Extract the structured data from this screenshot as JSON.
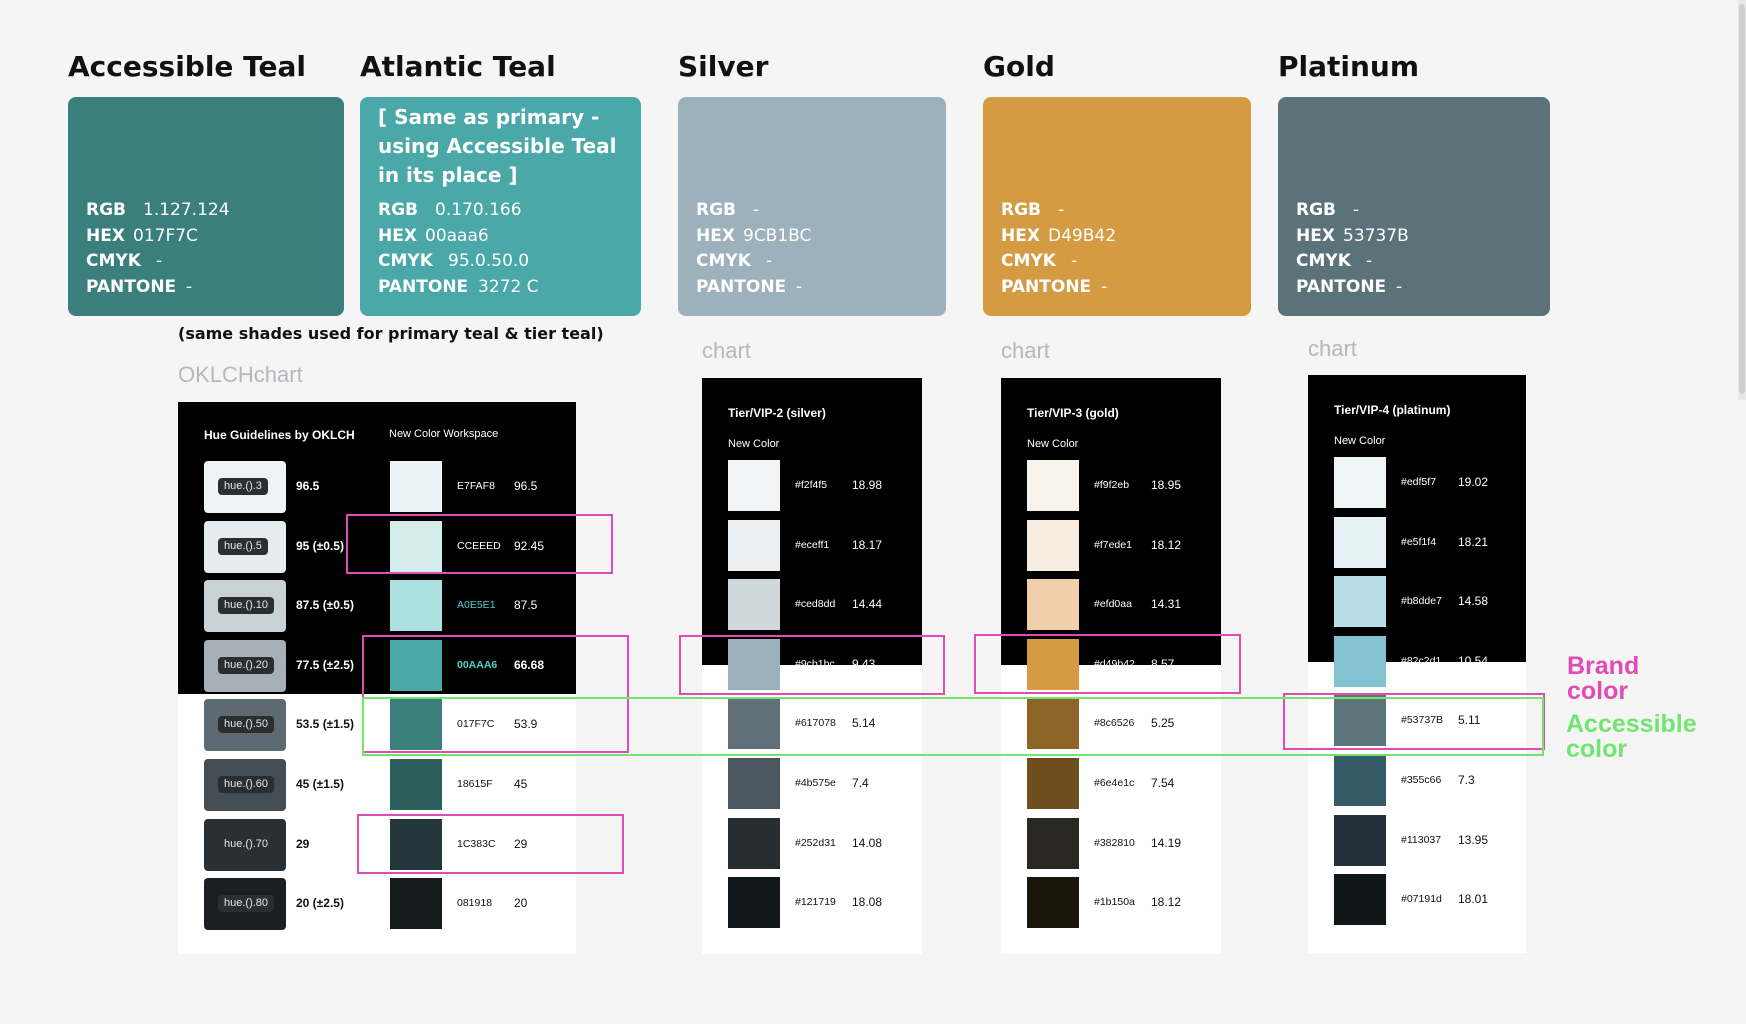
{
  "cards": [
    {
      "id": "accessible",
      "title": "Accessible Teal",
      "color": "#3a7f7c",
      "text_color": "#ffffff",
      "note": "",
      "rgb": "1.127.124",
      "hex": "017F7C",
      "cmyk": "-",
      "pantone": "-"
    },
    {
      "id": "atlantic",
      "title": "Atlantic Teal",
      "color": "#4aa8a8",
      "text_color": "#ffffff",
      "note": "[ Same as primary - using Accessible Teal in its place ]",
      "rgb": "0.170.166",
      "hex": "00aaa6",
      "cmyk": "95.0.50.0",
      "pantone": "3272 C"
    },
    {
      "id": "silver",
      "title": "Silver",
      "color": "#9cb1bc",
      "text_color": "#ffffff",
      "note": "",
      "rgb": "-",
      "hex": "9CB1BC",
      "cmyk": "-",
      "pantone": "-"
    },
    {
      "id": "gold",
      "title": "Gold",
      "color": "#d49b42",
      "text_color": "#ffffff",
      "note": "",
      "rgb": "-",
      "hex": "D49B42",
      "cmyk": "-",
      "pantone": "-"
    },
    {
      "id": "platinum",
      "title": "Platinum",
      "color": "#5c7279",
      "text_color": "#ffffff",
      "note": "",
      "rgb": "-",
      "hex": "53737B",
      "cmyk": "-",
      "pantone": "-"
    }
  ],
  "spec_labels": {
    "rgb": "RGB",
    "hex": "HEX",
    "cmyk": "CMYK",
    "pantone": "PANTONE"
  },
  "shades_caption": "(same shades used for primary teal & tier teal)",
  "oklch": {
    "label": "OKLCHchart",
    "heading": "Hue Guidelines by OKLCH",
    "workspace": "New Color Workspace",
    "rows": [
      {
        "pill": "hue.().3",
        "hue_color": "#eef3f5",
        "range": "96.5",
        "swatch": "#eaf4f6",
        "hex": "E7FAF8",
        "value": "96.5"
      },
      {
        "pill": "hue.().5",
        "hue_color": "#e4ecef",
        "range": "95 (±0.5)",
        "swatch": "#d4ecec",
        "hex": "CCEEED",
        "value": "92.45"
      },
      {
        "pill": "hue.().10",
        "hue_color": "#c8d1d6",
        "range": "87.5 (±0.5)",
        "swatch": "#ade0e1",
        "hex": "A0E5E1",
        "value": "87.5"
      },
      {
        "pill": "hue.().20",
        "hue_color": "#a6b0b6",
        "range": "77.5 (±2.5)",
        "swatch": "#4aa8a8",
        "hex": "00AAA6",
        "value": "66.68"
      },
      {
        "pill": "hue.().50",
        "hue_color": "#5d6a71",
        "range": "53.5 (±1.5)",
        "swatch": "#3a7f7c",
        "hex": "017F7C",
        "value": "53.9"
      },
      {
        "pill": "hue.().60",
        "hue_color": "#434d53",
        "range": "45 (±1.5)",
        "swatch": "#2d605c",
        "hex": "18615F",
        "value": "45"
      },
      {
        "pill": "hue.().70",
        "hue_color": "#283036",
        "range": "29",
        "swatch": "#23373d",
        "hex": "1C383C",
        "value": "29"
      },
      {
        "pill": "hue.().80",
        "hue_color": "#1a1f23",
        "range": "20 (±2.5)",
        "swatch": "#141a1a",
        "hex": "081918",
        "value": "20"
      }
    ]
  },
  "tiers": [
    {
      "id": "silver",
      "label": "chart",
      "heading": "Tier/VIP-2 (silver)",
      "sub": "New Color",
      "rows": [
        {
          "color": "#f2f4f5",
          "hex": "#f2f4f5",
          "value": "18.98"
        },
        {
          "color": "#eceff1",
          "hex": "#eceff1",
          "value": "18.17"
        },
        {
          "color": "#ced8dd",
          "hex": "#ced8dd",
          "value": "14.44"
        },
        {
          "color": "#9cb1bc",
          "hex": "#9cb1bc",
          "value": "9.43"
        },
        {
          "color": "#617078",
          "hex": "#617078",
          "value": "5.14"
        },
        {
          "color": "#4b575e",
          "hex": "#4b575e",
          "value": "7.4"
        },
        {
          "color": "#252d31",
          "hex": "#252d31",
          "value": "14.08"
        },
        {
          "color": "#121719",
          "hex": "#121719",
          "value": "18.08"
        }
      ]
    },
    {
      "id": "gold",
      "label": "chart",
      "heading": "Tier/VIP-3 (gold)",
      "sub": "New Color",
      "rows": [
        {
          "color": "#f9f2eb",
          "hex": "#f9f2eb",
          "value": "18.95"
        },
        {
          "color": "#f7ede1",
          "hex": "#f7ede1",
          "value": "18.12"
        },
        {
          "color": "#efd0aa",
          "hex": "#efd0aa",
          "value": "14.31"
        },
        {
          "color": "#d49b42",
          "hex": "#d49b42",
          "value": "8.57"
        },
        {
          "color": "#8c6526",
          "hex": "#8c6526",
          "value": "5.25"
        },
        {
          "color": "#6e4e1c",
          "hex": "#6e4e1c",
          "value": "7.54"
        },
        {
          "color": "#282722",
          "hex": "#382810",
          "value": "14.19"
        },
        {
          "color": "#1b150a",
          "hex": "#1b150a",
          "value": "18.12"
        }
      ]
    },
    {
      "id": "platinum",
      "label": "chart",
      "heading": "Tier/VIP-4 (platinum)",
      "sub": "New Color",
      "rows": [
        {
          "color": "#edf5f7",
          "hex": "#edf5f7",
          "value": "19.02"
        },
        {
          "color": "#e5f1f4",
          "hex": "#e5f1f4",
          "value": "18.21"
        },
        {
          "color": "#b8dde7",
          "hex": "#b8dde7",
          "value": "14.58"
        },
        {
          "color": "#82c2d1",
          "hex": "#82c2d1",
          "value": "10.54"
        },
        {
          "color": "#5e757c",
          "hex": "#53737B",
          "value": "5.11"
        },
        {
          "color": "#355c66",
          "hex": "#355c66",
          "value": "7.3"
        },
        {
          "color": "#24313a",
          "hex": "#113037",
          "value": "13.95"
        },
        {
          "color": "#101617",
          "hex": "#07191d",
          "value": "18.01"
        }
      ]
    }
  ],
  "legend": {
    "brand": "Brand color",
    "brand_line1": "Brand",
    "brand_line2": "color",
    "accessible_line1": "Accessible",
    "accessible_line2": "color",
    "brand_color": "#e04bb4",
    "accessible_color": "#72e56e"
  }
}
